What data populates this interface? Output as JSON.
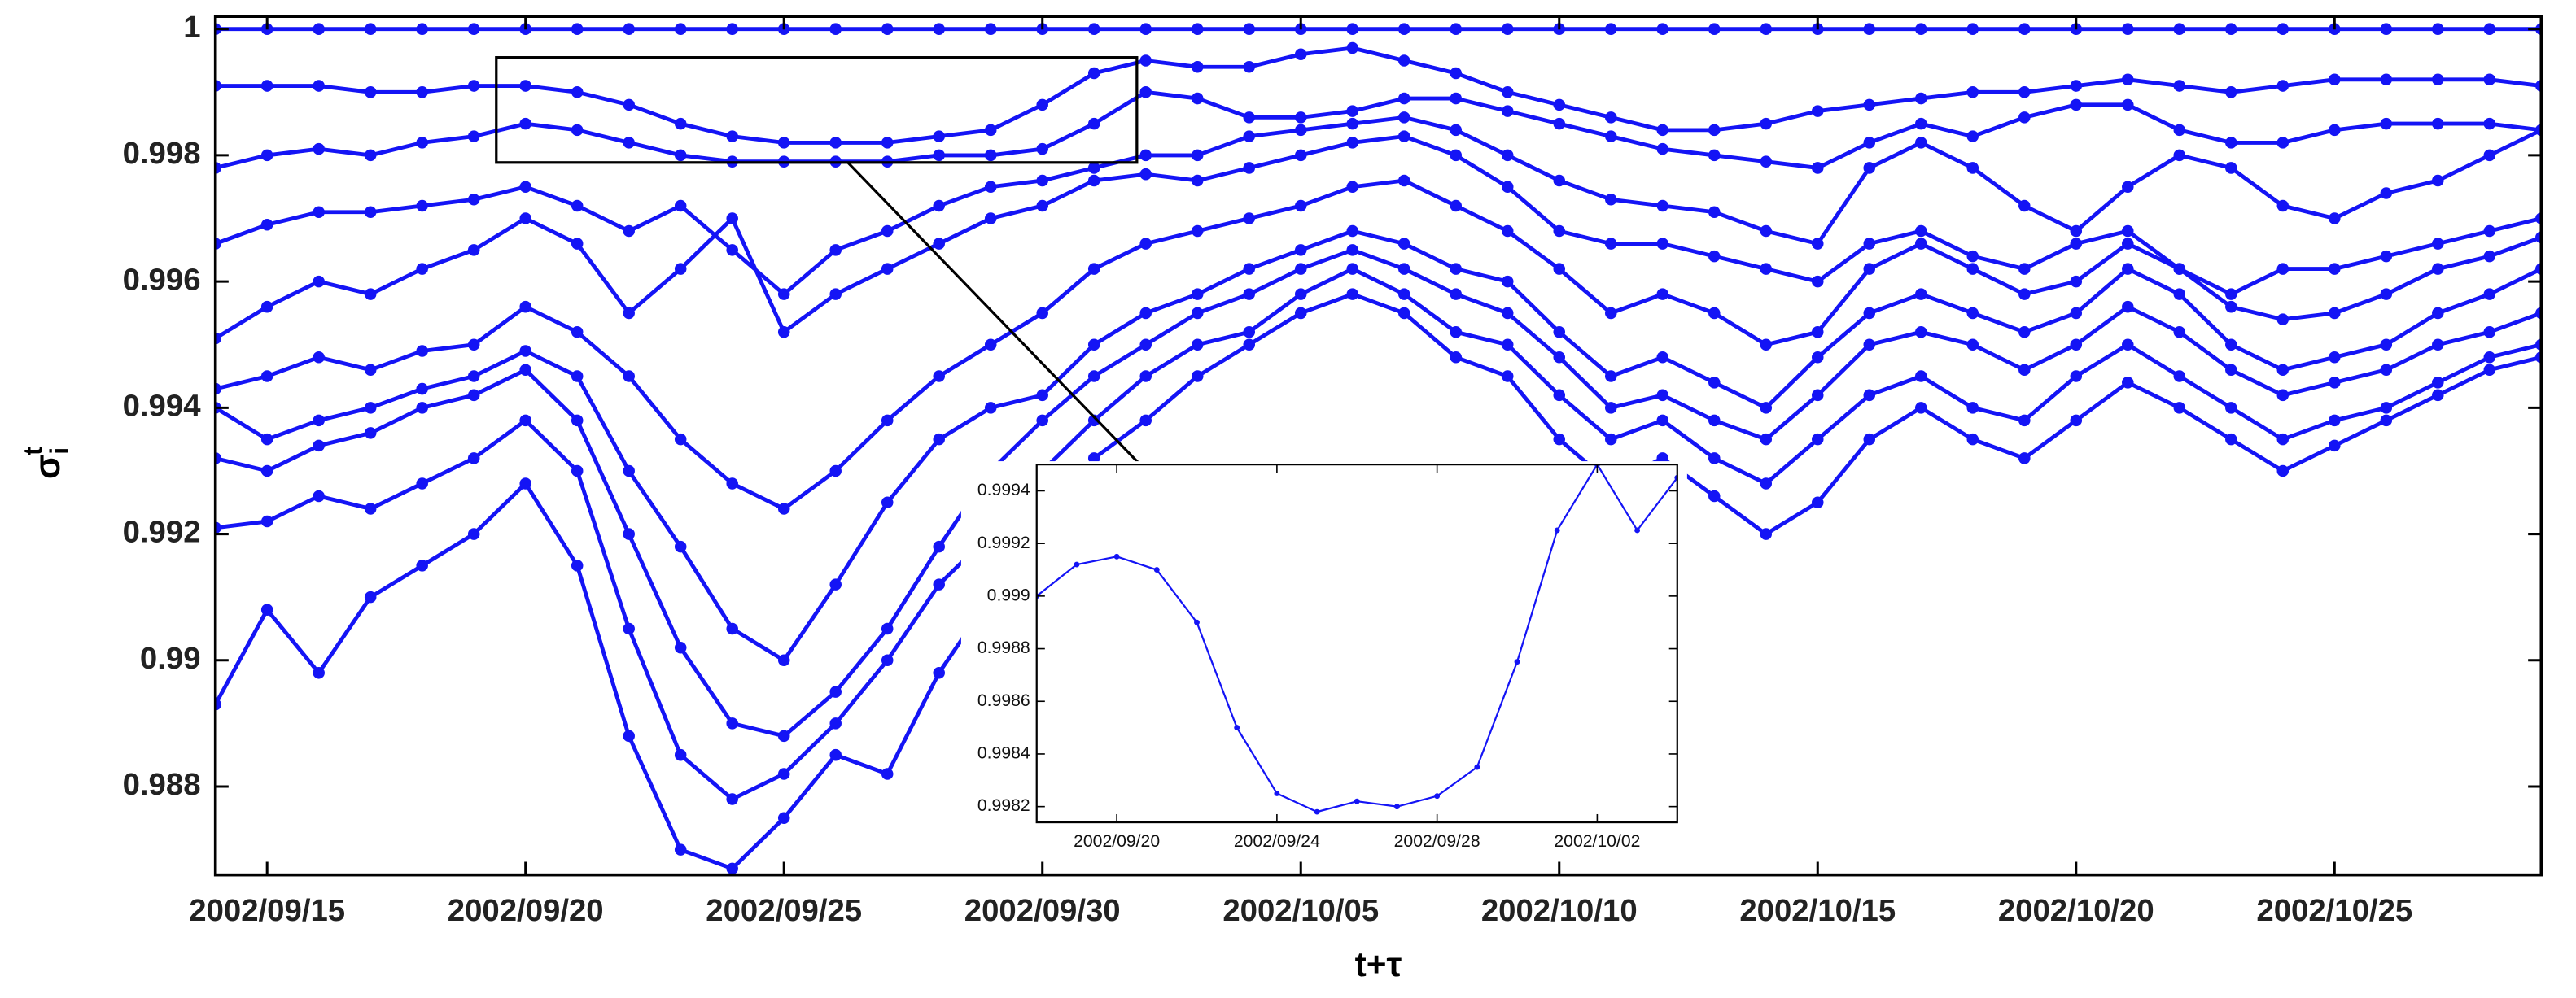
{
  "chart_data": [
    {
      "type": "line",
      "color": "#1414f5",
      "xlabel": "t+τ",
      "ylabel": "σ",
      "ylabel_sub": "i",
      "ylabel_sup": "t",
      "xlim": [
        "2002/09/14",
        "2002/10/29"
      ],
      "ylim": [
        0.9866,
        1.0002
      ],
      "xticks": [
        "2002/09/15",
        "2002/09/20",
        "2002/09/25",
        "2002/09/30",
        "2002/10/05",
        "2002/10/10",
        "2002/10/15",
        "2002/10/20",
        "2002/10/25"
      ],
      "yticks": [
        0.988,
        0.99,
        0.992,
        0.994,
        0.996,
        0.998,
        1
      ],
      "x": [
        "2002/09/14",
        "2002/09/15",
        "2002/09/16",
        "2002/09/17",
        "2002/09/18",
        "2002/09/19",
        "2002/09/20",
        "2002/09/21",
        "2002/09/22",
        "2002/09/23",
        "2002/09/24",
        "2002/09/25",
        "2002/09/26",
        "2002/09/27",
        "2002/09/28",
        "2002/09/29",
        "2002/09/30",
        "2002/10/01",
        "2002/10/02",
        "2002/10/03",
        "2002/10/04",
        "2002/10/05",
        "2002/10/06",
        "2002/10/07",
        "2002/10/08",
        "2002/10/09",
        "2002/10/10",
        "2002/10/11",
        "2002/10/12",
        "2002/10/13",
        "2002/10/14",
        "2002/10/15",
        "2002/10/16",
        "2002/10/17",
        "2002/10/18",
        "2002/10/19",
        "2002/10/20",
        "2002/10/21",
        "2002/10/22",
        "2002/10/23",
        "2002/10/24",
        "2002/10/25",
        "2002/10/26",
        "2002/10/27",
        "2002/10/28",
        "2002/10/29"
      ],
      "series": [
        {
          "values": [
            1,
            1,
            1,
            1,
            1,
            1,
            1,
            1,
            1,
            1,
            1,
            1,
            1,
            1,
            1,
            1,
            1,
            1,
            1,
            1,
            1,
            1,
            1,
            1,
            1,
            1,
            1,
            1,
            1,
            1,
            1,
            1,
            1,
            1,
            1,
            1,
            1,
            1,
            1,
            1,
            1,
            1,
            1,
            1,
            1,
            1
          ]
        },
        {
          "values": [
            0.9991,
            0.9991,
            0.9991,
            0.999,
            0.999,
            0.9991,
            0.9991,
            0.999,
            0.9988,
            0.9985,
            0.9983,
            0.9982,
            0.9982,
            0.9982,
            0.9983,
            0.9984,
            0.9988,
            0.9993,
            0.9995,
            0.9994,
            0.9994,
            0.9996,
            0.9997,
            0.9995,
            0.9993,
            0.999,
            0.9988,
            0.9986,
            0.9984,
            0.9984,
            0.9985,
            0.9987,
            0.9988,
            0.9989,
            0.999,
            0.999,
            0.9991,
            0.9992,
            0.9991,
            0.999,
            0.9991,
            0.9992,
            0.9992,
            0.9992,
            0.9992,
            0.9991
          ]
        },
        {
          "values": [
            0.9978,
            0.998,
            0.9981,
            0.998,
            0.9982,
            0.9983,
            0.9985,
            0.9984,
            0.9982,
            0.998,
            0.9979,
            0.9979,
            0.9979,
            0.9979,
            0.998,
            0.998,
            0.9981,
            0.9985,
            0.999,
            0.9989,
            0.9986,
            0.9986,
            0.9987,
            0.9989,
            0.9989,
            0.9987,
            0.9985,
            0.9983,
            0.9981,
            0.998,
            0.9979,
            0.9978,
            0.9982,
            0.9985,
            0.9983,
            0.9986,
            0.9988,
            0.9988,
            0.9984,
            0.9982,
            0.9982,
            0.9984,
            0.9985,
            0.9985,
            0.9985,
            0.9984
          ]
        },
        {
          "values": [
            0.9966,
            0.9969,
            0.9971,
            0.9971,
            0.9972,
            0.9973,
            0.9975,
            0.9972,
            0.9968,
            0.9972,
            0.9965,
            0.9958,
            0.9965,
            0.9968,
            0.9972,
            0.9975,
            0.9976,
            0.9978,
            0.998,
            0.998,
            0.9983,
            0.9984,
            0.9985,
            0.9986,
            0.9984,
            0.998,
            0.9976,
            0.9973,
            0.9972,
            0.9971,
            0.9968,
            0.9966,
            0.9978,
            0.9982,
            0.9978,
            0.9972,
            0.9968,
            0.9975,
            0.998,
            0.9978,
            0.9972,
            0.997,
            0.9974,
            0.9976,
            0.998,
            0.9984
          ]
        },
        {
          "values": [
            0.9951,
            0.9956,
            0.996,
            0.9958,
            0.9962,
            0.9965,
            0.997,
            0.9966,
            0.9955,
            0.9962,
            0.997,
            0.9952,
            0.9958,
            0.9962,
            0.9966,
            0.997,
            0.9972,
            0.9976,
            0.9977,
            0.9976,
            0.9978,
            0.998,
            0.9982,
            0.9983,
            0.998,
            0.9975,
            0.9968,
            0.9966,
            0.9966,
            0.9964,
            0.9962,
            0.996,
            0.9966,
            0.9968,
            0.9964,
            0.9962,
            0.9966,
            0.9968,
            0.9962,
            0.9958,
            0.9962,
            0.9962,
            0.9964,
            0.9966,
            0.9968,
            0.997
          ]
        },
        {
          "values": [
            0.9943,
            0.9945,
            0.9948,
            0.9946,
            0.9949,
            0.995,
            0.9956,
            0.9952,
            0.9945,
            0.9935,
            0.9928,
            0.9924,
            0.993,
            0.9938,
            0.9945,
            0.995,
            0.9955,
            0.9962,
            0.9966,
            0.9968,
            0.997,
            0.9972,
            0.9975,
            0.9976,
            0.9972,
            0.9968,
            0.9962,
            0.9955,
            0.9958,
            0.9955,
            0.995,
            0.9952,
            0.9962,
            0.9966,
            0.9962,
            0.9958,
            0.996,
            0.9966,
            0.9962,
            0.9956,
            0.9954,
            0.9955,
            0.9958,
            0.9962,
            0.9964,
            0.9967
          ]
        },
        {
          "values": [
            0.994,
            0.9935,
            0.9938,
            0.994,
            0.9943,
            0.9945,
            0.9949,
            0.9945,
            0.993,
            0.9918,
            0.9905,
            0.99,
            0.9912,
            0.9925,
            0.9935,
            0.994,
            0.9942,
            0.995,
            0.9955,
            0.9958,
            0.9962,
            0.9965,
            0.9968,
            0.9966,
            0.9962,
            0.996,
            0.9952,
            0.9945,
            0.9948,
            0.9944,
            0.994,
            0.9948,
            0.9955,
            0.9958,
            0.9955,
            0.9952,
            0.9955,
            0.9962,
            0.9958,
            0.995,
            0.9946,
            0.9948,
            0.995,
            0.9955,
            0.9958,
            0.9962
          ]
        },
        {
          "values": [
            0.9932,
            0.993,
            0.9934,
            0.9936,
            0.994,
            0.9942,
            0.9946,
            0.9938,
            0.992,
            0.9902,
            0.989,
            0.9888,
            0.9895,
            0.9905,
            0.9918,
            0.993,
            0.9938,
            0.9945,
            0.995,
            0.9955,
            0.9958,
            0.9962,
            0.9965,
            0.9962,
            0.9958,
            0.9955,
            0.9948,
            0.994,
            0.9942,
            0.9938,
            0.9935,
            0.9942,
            0.995,
            0.9952,
            0.995,
            0.9946,
            0.995,
            0.9956,
            0.9952,
            0.9946,
            0.9942,
            0.9944,
            0.9946,
            0.995,
            0.9952,
            0.9955
          ]
        },
        {
          "values": [
            0.9921,
            0.9922,
            0.9926,
            0.9924,
            0.9928,
            0.9932,
            0.9938,
            0.993,
            0.9905,
            0.9885,
            0.9878,
            0.9882,
            0.989,
            0.99,
            0.9912,
            0.992,
            0.993,
            0.9938,
            0.9945,
            0.995,
            0.9952,
            0.9958,
            0.9962,
            0.9958,
            0.9952,
            0.995,
            0.9942,
            0.9935,
            0.9938,
            0.9932,
            0.9928,
            0.9935,
            0.9942,
            0.9945,
            0.994,
            0.9938,
            0.9945,
            0.995,
            0.9945,
            0.994,
            0.9935,
            0.9938,
            0.994,
            0.9944,
            0.9948,
            0.995
          ]
        },
        {
          "values": [
            0.9893,
            0.9908,
            0.9898,
            0.991,
            0.9915,
            0.992,
            0.9928,
            0.9915,
            0.9888,
            0.987,
            0.9867,
            0.9875,
            0.9885,
            0.9882,
            0.9898,
            0.991,
            0.9922,
            0.9932,
            0.9938,
            0.9945,
            0.995,
            0.9955,
            0.9958,
            0.9955,
            0.9948,
            0.9945,
            0.9935,
            0.9928,
            0.9932,
            0.9926,
            0.992,
            0.9925,
            0.9935,
            0.994,
            0.9935,
            0.9932,
            0.9938,
            0.9944,
            0.994,
            0.9935,
            0.993,
            0.9934,
            0.9938,
            0.9942,
            0.9946,
            0.9948
          ]
        }
      ]
    },
    {
      "type": "line",
      "color": "#1414f5",
      "xlim": [
        "2002/09/18",
        "2002/10/04"
      ],
      "ylim": [
        0.99814,
        0.9995
      ],
      "xticks": [
        "2002/09/20",
        "2002/09/24",
        "2002/09/28",
        "2002/10/02"
      ],
      "yticks": [
        0.9982,
        0.9984,
        0.9986,
        0.9988,
        0.999,
        0.9992,
        0.9994
      ],
      "x": [
        "2002/09/18",
        "2002/09/19",
        "2002/09/20",
        "2002/09/21",
        "2002/09/22",
        "2002/09/23",
        "2002/09/24",
        "2002/09/25",
        "2002/09/26",
        "2002/09/27",
        "2002/09/28",
        "2002/09/29",
        "2002/09/30",
        "2002/10/01",
        "2002/10/02",
        "2002/10/03",
        "2002/10/04"
      ],
      "series": [
        {
          "values": [
            0.999,
            0.99912,
            0.99915,
            0.9991,
            0.9989,
            0.9985,
            0.99825,
            0.99818,
            0.99822,
            0.9982,
            0.99824,
            0.99835,
            0.99875,
            0.99925,
            0.9995,
            0.99925,
            0.99945
          ]
        }
      ]
    }
  ]
}
